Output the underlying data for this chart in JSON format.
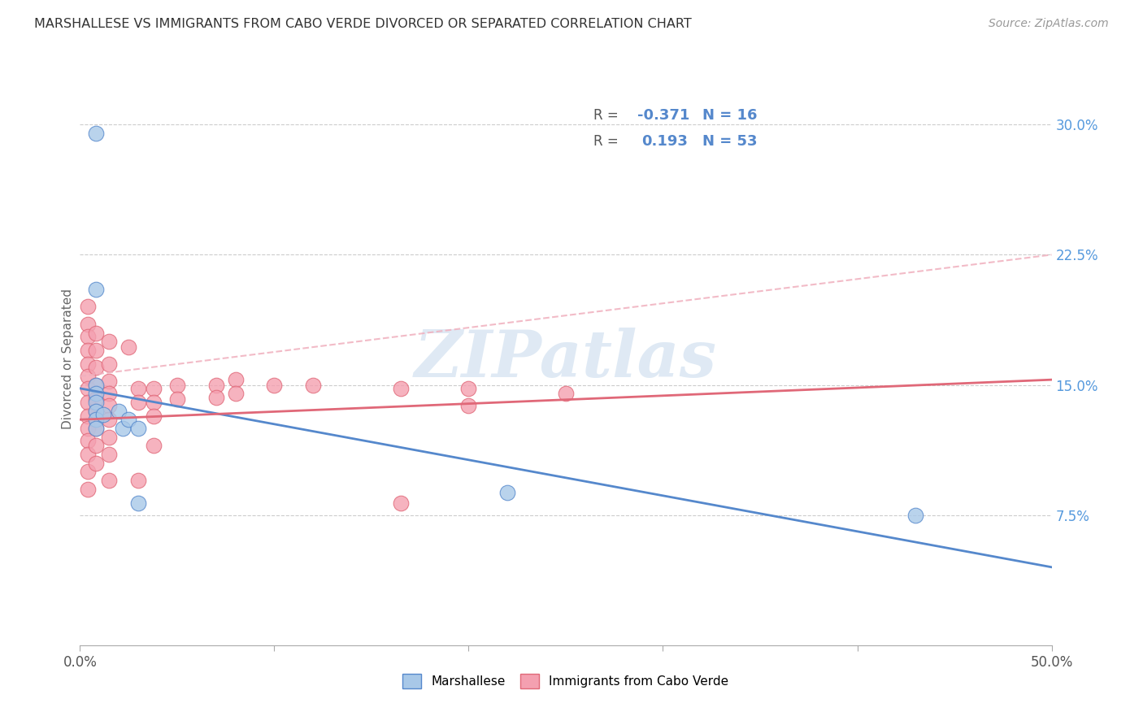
{
  "title": "MARSHALLESE VS IMMIGRANTS FROM CABO VERDE DIVORCED OR SEPARATED CORRELATION CHART",
  "source": "Source: ZipAtlas.com",
  "ylabel": "Divorced or Separated",
  "right_yticks": [
    "30.0%",
    "22.5%",
    "15.0%",
    "7.5%"
  ],
  "right_ytick_vals": [
    0.3,
    0.225,
    0.15,
    0.075
  ],
  "xmin": 0.0,
  "xmax": 0.5,
  "ymin": 0.0,
  "ymax": 0.33,
  "blue_color": "#a8c8e8",
  "pink_color": "#f4a0b0",
  "blue_line_color": "#5588cc",
  "pink_line_color": "#e06878",
  "pink_dash_color": "#f0b0be",
  "watermark": "ZIPatlas",
  "marshallese_points": [
    [
      0.008,
      0.295
    ],
    [
      0.008,
      0.205
    ],
    [
      0.008,
      0.15
    ],
    [
      0.008,
      0.145
    ],
    [
      0.008,
      0.14
    ],
    [
      0.008,
      0.135
    ],
    [
      0.008,
      0.13
    ],
    [
      0.008,
      0.125
    ],
    [
      0.012,
      0.133
    ],
    [
      0.02,
      0.135
    ],
    [
      0.022,
      0.125
    ],
    [
      0.025,
      0.13
    ],
    [
      0.03,
      0.125
    ],
    [
      0.03,
      0.082
    ],
    [
      0.22,
      0.088
    ],
    [
      0.43,
      0.075
    ]
  ],
  "caboverde_points": [
    [
      0.004,
      0.195
    ],
    [
      0.004,
      0.185
    ],
    [
      0.004,
      0.178
    ],
    [
      0.004,
      0.17
    ],
    [
      0.004,
      0.162
    ],
    [
      0.004,
      0.155
    ],
    [
      0.004,
      0.148
    ],
    [
      0.004,
      0.14
    ],
    [
      0.004,
      0.132
    ],
    [
      0.004,
      0.125
    ],
    [
      0.004,
      0.118
    ],
    [
      0.004,
      0.11
    ],
    [
      0.004,
      0.1
    ],
    [
      0.004,
      0.09
    ],
    [
      0.008,
      0.18
    ],
    [
      0.008,
      0.17
    ],
    [
      0.008,
      0.16
    ],
    [
      0.008,
      0.15
    ],
    [
      0.008,
      0.142
    ],
    [
      0.008,
      0.135
    ],
    [
      0.008,
      0.125
    ],
    [
      0.008,
      0.115
    ],
    [
      0.008,
      0.105
    ],
    [
      0.015,
      0.175
    ],
    [
      0.015,
      0.162
    ],
    [
      0.015,
      0.152
    ],
    [
      0.015,
      0.145
    ],
    [
      0.015,
      0.138
    ],
    [
      0.015,
      0.13
    ],
    [
      0.015,
      0.12
    ],
    [
      0.015,
      0.11
    ],
    [
      0.015,
      0.095
    ],
    [
      0.025,
      0.172
    ],
    [
      0.03,
      0.148
    ],
    [
      0.03,
      0.14
    ],
    [
      0.03,
      0.095
    ],
    [
      0.038,
      0.148
    ],
    [
      0.038,
      0.14
    ],
    [
      0.038,
      0.132
    ],
    [
      0.038,
      0.115
    ],
    [
      0.05,
      0.15
    ],
    [
      0.05,
      0.142
    ],
    [
      0.07,
      0.15
    ],
    [
      0.07,
      0.143
    ],
    [
      0.08,
      0.153
    ],
    [
      0.08,
      0.145
    ],
    [
      0.1,
      0.15
    ],
    [
      0.12,
      0.15
    ],
    [
      0.165,
      0.148
    ],
    [
      0.165,
      0.082
    ],
    [
      0.2,
      0.148
    ],
    [
      0.2,
      0.138
    ],
    [
      0.25,
      0.145
    ]
  ]
}
